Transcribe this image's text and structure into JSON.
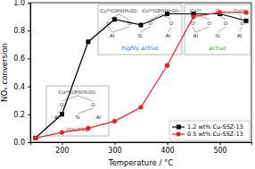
{
  "chart_data": {
    "type": "line",
    "x_label": "Temperature / °C",
    "y_label": "NOₓ conversion",
    "x": [
      150,
      200,
      250,
      300,
      350,
      400,
      450,
      500,
      550
    ],
    "xlim": [
      140,
      560
    ],
    "xticks": [
      200,
      300,
      400,
      500
    ],
    "ylim": [
      0,
      1
    ],
    "yticks": [
      {
        "value": 0,
        "label": "0.0"
      },
      0.2,
      0.4,
      0.6,
      0.8,
      {
        "value": 1,
        "label": "1.0"
      }
    ],
    "series": [
      {
        "name": "1.2 wt% Cu-SSZ-13",
        "color": "#000000",
        "marker": "square",
        "values": [
          0.03,
          0.2,
          0.72,
          0.88,
          0.84,
          0.92,
          0.92,
          0.92,
          0.87
        ]
      },
      {
        "name": "0.5 wt% Cu-SSZ-13",
        "color": "#ee1c25",
        "marker": "circle",
        "values": [
          0.03,
          0.07,
          0.1,
          0.15,
          0.25,
          0.55,
          0.9,
          0.93,
          0.93
        ]
      }
    ],
    "legend": "lower right",
    "annotations": [
      {
        "text": "highly active",
        "color": "#2f6fd0",
        "top": [
          "Cu²⁺(OH)(H₂O)₂",
          "Cu²⁺(OH)(H₂O)₂"
        ],
        "oxygens": [
          "O",
          "O",
          "O",
          "O"
        ],
        "framework": [
          "Al",
          "Si",
          "Al"
        ]
      },
      {
        "text": "active",
        "color": "#3aa83a",
        "top": [
          "Cu²⁺",
          "O",
          "Cu²⁺"
        ],
        "oxygens": [
          "O",
          "O",
          "O",
          "O"
        ],
        "framework": [
          "Al",
          "Si",
          "Al"
        ]
      },
      {
        "text": "inactive",
        "color": "#d42020",
        "top": [
          "Cu²⁺(OH)(H₂O)₂"
        ],
        "oxygens": [
          "O",
          "O"
        ],
        "framework": [
          "Al",
          "Si",
          "Al"
        ]
      }
    ]
  }
}
